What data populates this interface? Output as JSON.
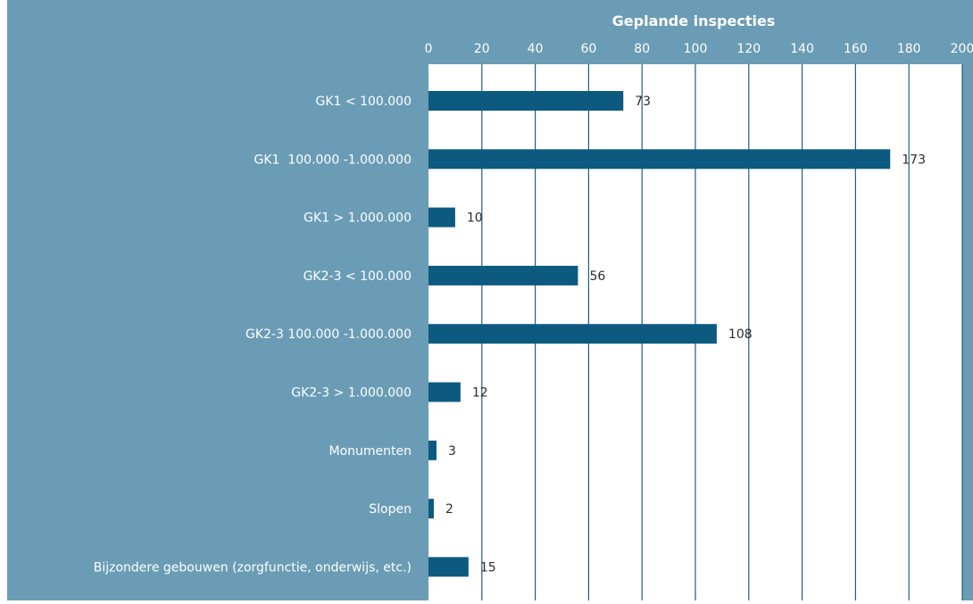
{
  "colors": {
    "panel_background": "#6a9cb5",
    "plot_background": "#ffffff",
    "bar": "#0d5a80",
    "gridline": "#1f5f7c",
    "axis_text": "#ffffff",
    "data_label": "#2b2b2b"
  },
  "chart_data": {
    "type": "bar",
    "orientation": "horizontal",
    "title": "Geplande inspecties",
    "xlabel": "",
    "ylabel": "",
    "xlim": [
      0,
      200
    ],
    "xticks": [
      "0",
      "20",
      "40",
      "60",
      "80",
      "100",
      "120",
      "140",
      "160",
      "180",
      "200"
    ],
    "x_axis_position": "top",
    "grid": true,
    "legend": "none",
    "categories": [
      "GK1 < 100.000",
      "GK1  100.000 -1.000.000",
      "GK1 > 1.000.000",
      "GK2-3 < 100.000",
      "GK2-3 100.000 -1.000.000",
      "GK2-3 > 1.000.000",
      "Monumenten",
      "Slopen",
      "Bijzondere gebouwen (zorgfunctie, onderwijs, etc.)"
    ],
    "values": [
      73,
      173,
      10,
      56,
      108,
      12,
      3,
      2,
      15
    ],
    "data_labels": [
      "73",
      "173",
      "10",
      "56",
      "108",
      "12",
      "3",
      "2",
      "15"
    ]
  }
}
